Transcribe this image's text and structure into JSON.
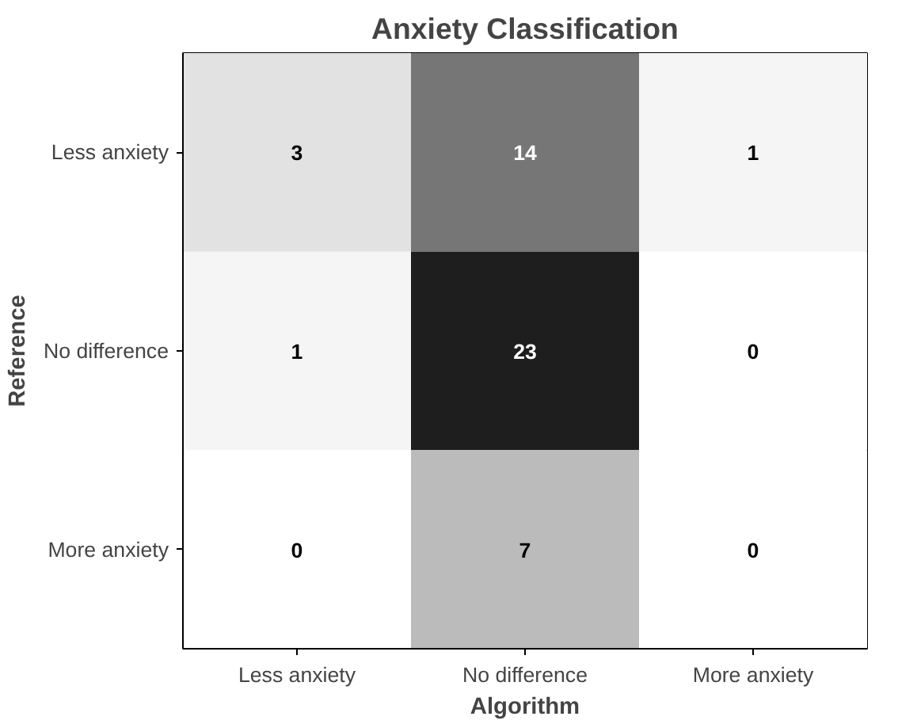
{
  "chart_data": {
    "type": "heatmap",
    "title": "Anxiety Classification",
    "xlabel": "Algorithm",
    "ylabel": "Reference",
    "categories": [
      "Less anxiety",
      "No difference",
      "More anxiety"
    ],
    "y_categories": [
      "Less anxiety",
      "No difference",
      "More anxiety"
    ],
    "cells": [
      [
        3,
        14,
        1
      ],
      [
        1,
        23,
        0
      ],
      [
        0,
        7,
        0
      ]
    ],
    "data_labels": true
  }
}
